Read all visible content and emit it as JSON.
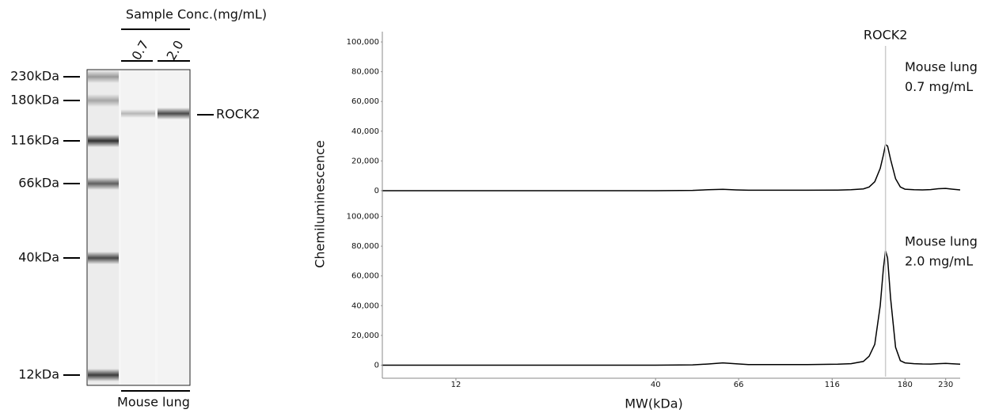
{
  "gel": {
    "title": "Sample Conc.(mg/mL)",
    "lanes": [
      "0.7",
      "2.0"
    ],
    "ladder": [
      "230kDa",
      "180kDa",
      "116kDa",
      "66kDa",
      "40kDa",
      "12kDa"
    ],
    "band_label": "ROCK2",
    "sample": "Mouse lung"
  },
  "chart_data": [
    {
      "type": "line",
      "ylabel": "Chemiluminescence",
      "marker": {
        "label": "ROCK2",
        "x": 160
      },
      "annotation": [
        "Mouse lung",
        "0.7 mg/mL"
      ],
      "x": [
        7.7,
        12,
        20,
        30,
        40,
        50,
        55,
        60,
        65,
        70,
        80,
        100,
        120,
        130,
        140,
        145,
        150,
        155,
        158,
        160,
        162,
        165,
        170,
        175,
        180,
        190,
        200,
        210,
        220,
        230,
        240,
        251
      ],
      "series": [
        {
          "color": "#000000",
          "values": [
            0,
            0,
            0,
            0,
            0,
            200,
            600,
            900,
            500,
            300,
            300,
            300,
            400,
            600,
            1200,
            2500,
            6000,
            15000,
            24000,
            31000,
            30000,
            21000,
            8000,
            2500,
            1000,
            600,
            500,
            700,
            1300,
            1500,
            1000,
            500
          ]
        }
      ],
      "xlim": [
        7.7,
        251
      ],
      "log_x": true,
      "ylim": [
        -8000,
        104000
      ],
      "yticks": [
        0,
        {
          "value": 20000,
          "label": "20,000"
        },
        {
          "value": 40000,
          "label": "40,000"
        },
        {
          "value": 60000,
          "label": "60,000"
        },
        {
          "value": 80000,
          "label": "80,000"
        },
        {
          "value": 100000,
          "label": "100,000"
        }
      ]
    },
    {
      "type": "line",
      "xlabel": "MW(kDa)",
      "annotation": [
        "Mouse lung",
        "2.0 mg/mL"
      ],
      "x": [
        7.7,
        12,
        20,
        30,
        40,
        50,
        55,
        60,
        65,
        70,
        80,
        100,
        120,
        130,
        140,
        145,
        150,
        155,
        158,
        160,
        162,
        165,
        170,
        175,
        180,
        190,
        200,
        210,
        220,
        230,
        240,
        251
      ],
      "series": [
        {
          "color": "#000000",
          "values": [
            0,
            0,
            0,
            0,
            0,
            200,
            800,
            1500,
            900,
            400,
            400,
            400,
            600,
            1000,
            2500,
            6000,
            14000,
            40000,
            65000,
            77000,
            72000,
            45000,
            12000,
            3000,
            1500,
            1000,
            800,
            700,
            1000,
            1200,
            900,
            600
          ]
        }
      ],
      "xlim": [
        7.7,
        251
      ],
      "log_x": true,
      "ylim": [
        -8000,
        104000
      ],
      "xticks": [
        12,
        40,
        66,
        116,
        180,
        230
      ],
      "yticks": [
        0,
        {
          "value": 20000,
          "label": "20,000"
        },
        {
          "value": 40000,
          "label": "40,000"
        },
        {
          "value": 60000,
          "label": "60,000"
        },
        {
          "value": 80000,
          "label": "80,000"
        },
        {
          "value": 100000,
          "label": "100,000"
        }
      ]
    }
  ]
}
